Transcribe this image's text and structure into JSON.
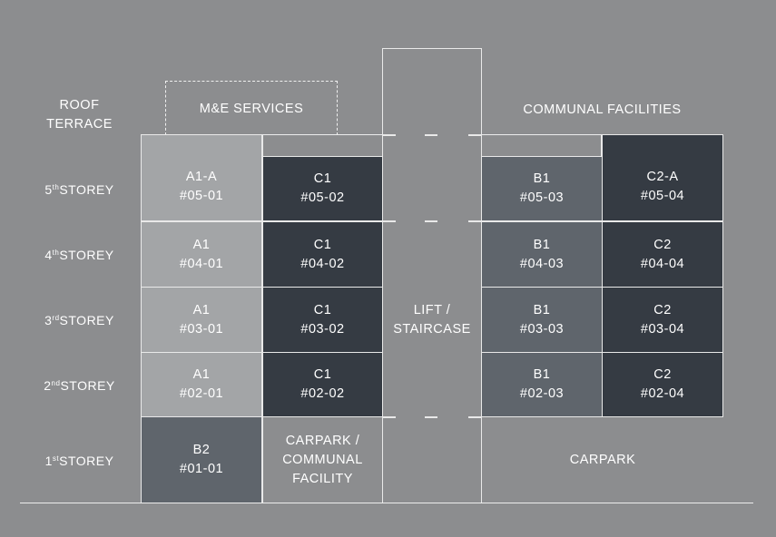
{
  "roof": {
    "label_line1": "ROOF",
    "label_line2": "TERRACE",
    "me_services": "M&E SERVICES",
    "communal_facilities": "COMMUNAL FACILITIES"
  },
  "floors": [
    {
      "num": "5",
      "suffix": "th",
      "rest": "STOREY"
    },
    {
      "num": "4",
      "suffix": "th",
      "rest": "STOREY"
    },
    {
      "num": "3",
      "suffix": "rd",
      "rest": "STOREY"
    },
    {
      "num": "2",
      "suffix": "nd",
      "rest": "STOREY"
    },
    {
      "num": "1",
      "suffix": "st",
      "rest": "STOREY"
    }
  ],
  "units": {
    "u0501": {
      "type": "A1-A",
      "no": "#05-01"
    },
    "u0502": {
      "type": "C1",
      "no": "#05-02"
    },
    "u0503": {
      "type": "B1",
      "no": "#05-03"
    },
    "u0504": {
      "type": "C2-A",
      "no": "#05-04"
    },
    "u0401": {
      "type": "A1",
      "no": "#04-01"
    },
    "u0402": {
      "type": "C1",
      "no": "#04-02"
    },
    "u0403": {
      "type": "B1",
      "no": "#04-03"
    },
    "u0404": {
      "type": "C2",
      "no": "#04-04"
    },
    "u0301": {
      "type": "A1",
      "no": "#03-01"
    },
    "u0302": {
      "type": "C1",
      "no": "#03-02"
    },
    "u0303": {
      "type": "B1",
      "no": "#03-03"
    },
    "u0304": {
      "type": "C2",
      "no": "#03-04"
    },
    "u0201": {
      "type": "A1",
      "no": "#02-01"
    },
    "u0202": {
      "type": "C1",
      "no": "#02-02"
    },
    "u0203": {
      "type": "B1",
      "no": "#02-03"
    },
    "u0204": {
      "type": "C2",
      "no": "#02-04"
    },
    "u0101": {
      "type": "B2",
      "no": "#01-01"
    }
  },
  "ground": {
    "carpark_communal_line1": "CARPARK /",
    "carpark_communal_line2": "COMMUNAL",
    "carpark_communal_line3": "FACILITY",
    "carpark": "CARPARK"
  },
  "core": {
    "line1": "LIFT /",
    "line2": "STAIRCASE"
  },
  "colors": {
    "background": "#8c8d8f",
    "type_a": "#a3a5a7",
    "type_c": "#353b43",
    "type_b": "#5f656c"
  }
}
